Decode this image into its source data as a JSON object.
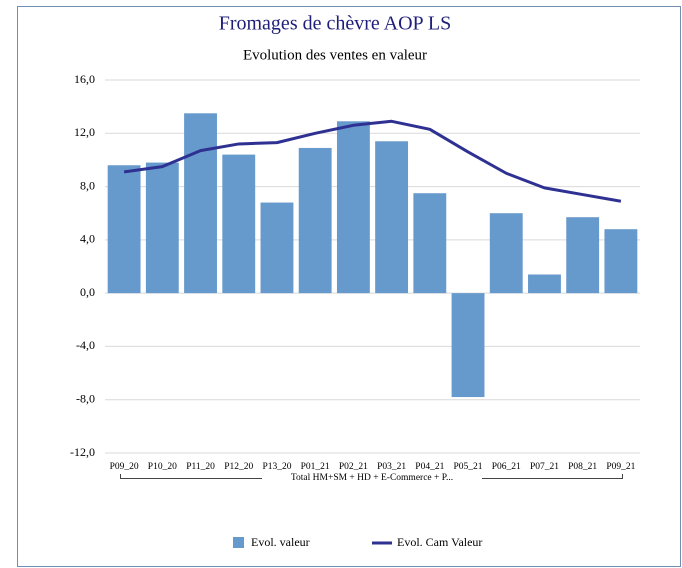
{
  "chart_data": {
    "type": "bar",
    "title": "Fromages de chèvre AOP LS",
    "subtitle": "Evolution des ventes en valeur",
    "categories": [
      "P09_20",
      "P10_20",
      "P11_20",
      "P12_20",
      "P13_20",
      "P01_21",
      "P02_21",
      "P03_21",
      "P04_21",
      "P05_21",
      "P06_21",
      "P07_21",
      "P08_21",
      "P09_21"
    ],
    "group_label": "Total HM+SM + HD + E-Commerce + P...",
    "series": [
      {
        "name": "Evol.  valeur",
        "type": "bar",
        "color": "#6699cc",
        "values": [
          9.6,
          9.8,
          13.5,
          10.4,
          6.8,
          10.9,
          12.9,
          11.4,
          7.5,
          -7.8,
          6.0,
          1.4,
          5.7,
          4.8
        ]
      },
      {
        "name": "Evol. Cam Valeur",
        "type": "line",
        "color": "#2e3192",
        "values": [
          9.1,
          9.5,
          10.7,
          11.2,
          11.3,
          12.0,
          12.6,
          12.9,
          12.3,
          10.6,
          9.0,
          7.9,
          7.4,
          6.9
        ]
      }
    ],
    "ylim": [
      -12,
      16
    ],
    "yticks": [
      {
        "value": -12,
        "label": "-12,0"
      },
      {
        "value": -8,
        "label": "-8,0"
      },
      {
        "value": -4,
        "label": "-4,0"
      },
      {
        "value": 0,
        "label": "0,0"
      },
      {
        "value": 4,
        "label": "4,0"
      },
      {
        "value": 8,
        "label": "8,0"
      },
      {
        "value": 12,
        "label": "12,0"
      },
      {
        "value": 16,
        "label": "16,0"
      }
    ],
    "grid": true,
    "legend": "bottom"
  }
}
